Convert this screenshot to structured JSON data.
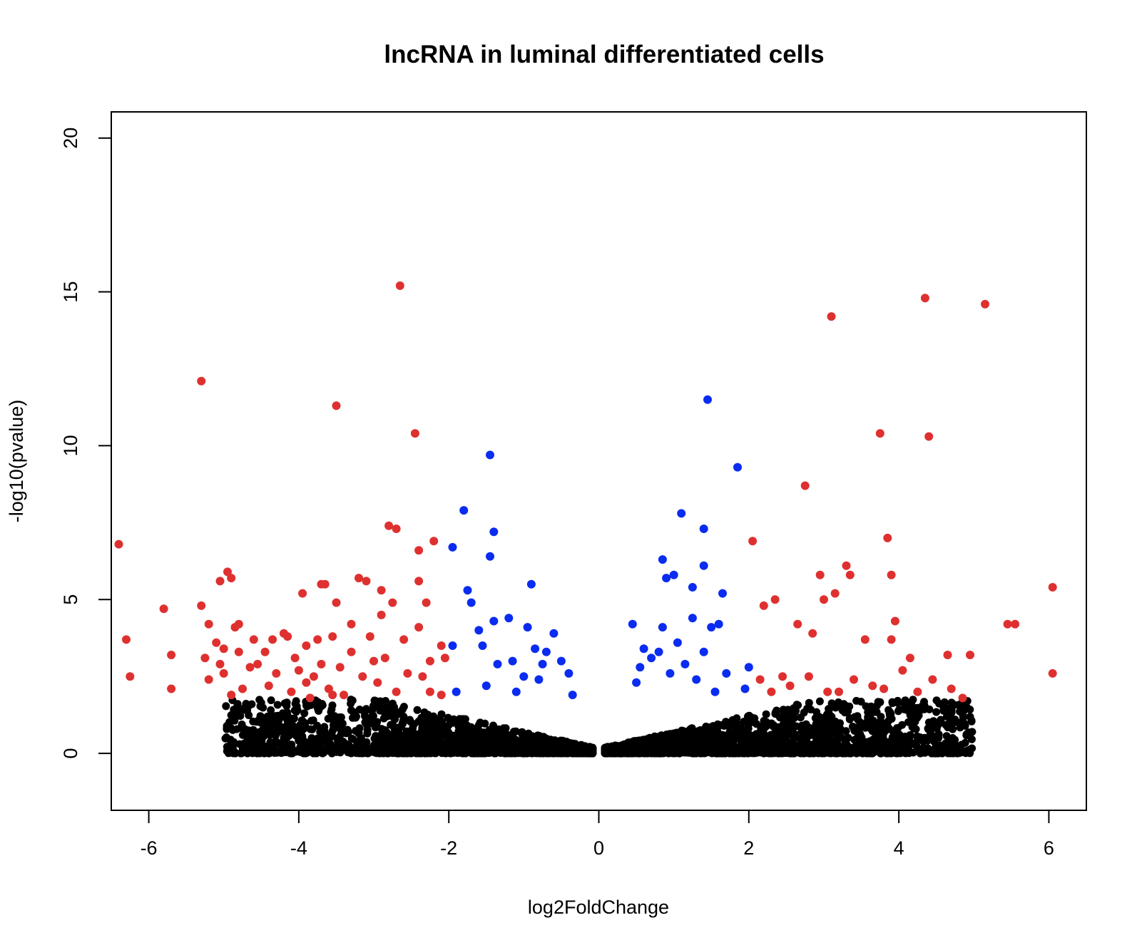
{
  "chart_data": {
    "type": "scatter",
    "title": "lncRNA in luminal differentiated cells",
    "xlabel": "log2FoldChange",
    "ylabel": "-log10(pvalue)",
    "xlim": [
      -6.5,
      6.5
    ],
    "ylim": [
      -1.85,
      20.85
    ],
    "xticks": [
      "-6",
      "-4",
      "-2",
      "0",
      "2",
      "4",
      "6"
    ],
    "yticks": [
      "0",
      "5",
      "10",
      "15",
      "20"
    ],
    "grid": false,
    "colors": {
      "significant_large_fc": "#df3030",
      "significant_small_fc": "#0a2cf0",
      "not_significant": "#000000"
    },
    "series": [
      {
        "color": "#df3030",
        "points": [
          [
            -6.4,
            6.8
          ],
          [
            -6.3,
            3.7
          ],
          [
            -6.25,
            2.5
          ],
          [
            -5.8,
            4.7
          ],
          [
            -5.7,
            3.2
          ],
          [
            -5.7,
            2.1
          ],
          [
            -5.3,
            12.1
          ],
          [
            -5.3,
            4.8
          ],
          [
            -5.25,
            3.1
          ],
          [
            -5.2,
            4.2
          ],
          [
            -5.2,
            2.4
          ],
          [
            -5.1,
            3.6
          ],
          [
            -5.05,
            5.6
          ],
          [
            -5.05,
            2.9
          ],
          [
            -5.0,
            3.4
          ],
          [
            -5.0,
            2.6
          ],
          [
            -4.95,
            5.9
          ],
          [
            -4.9,
            5.7
          ],
          [
            -4.9,
            1.9
          ],
          [
            -4.85,
            4.1
          ],
          [
            -4.8,
            4.2
          ],
          [
            -4.8,
            3.3
          ],
          [
            -4.75,
            2.1
          ],
          [
            -4.65,
            2.8
          ],
          [
            -4.6,
            3.7
          ],
          [
            -4.55,
            2.9
          ],
          [
            -4.45,
            3.3
          ],
          [
            -4.4,
            2.2
          ],
          [
            -4.35,
            3.7
          ],
          [
            -4.3,
            2.6
          ],
          [
            -4.2,
            3.9
          ],
          [
            -4.15,
            3.8
          ],
          [
            -4.1,
            2.0
          ],
          [
            -4.05,
            3.1
          ],
          [
            -4.0,
            2.7
          ],
          [
            -3.95,
            5.2
          ],
          [
            -3.9,
            3.5
          ],
          [
            -3.9,
            2.3
          ],
          [
            -3.85,
            1.8
          ],
          [
            -3.8,
            2.5
          ],
          [
            -3.75,
            3.7
          ],
          [
            -3.7,
            5.5
          ],
          [
            -3.7,
            2.9
          ],
          [
            -3.65,
            5.5
          ],
          [
            -3.6,
            2.1
          ],
          [
            -3.55,
            3.8
          ],
          [
            -3.55,
            1.9
          ],
          [
            -3.5,
            11.3
          ],
          [
            -3.5,
            4.9
          ],
          [
            -3.45,
            2.8
          ],
          [
            -3.4,
            1.9
          ],
          [
            -3.3,
            4.2
          ],
          [
            -3.3,
            3.3
          ],
          [
            -3.2,
            5.7
          ],
          [
            -3.15,
            2.5
          ],
          [
            -3.1,
            5.6
          ],
          [
            -3.05,
            3.8
          ],
          [
            -3.0,
            3.0
          ],
          [
            -2.95,
            2.3
          ],
          [
            -2.9,
            5.3
          ],
          [
            -2.9,
            4.5
          ],
          [
            -2.85,
            3.1
          ],
          [
            -2.8,
            7.4
          ],
          [
            -2.75,
            4.9
          ],
          [
            -2.7,
            7.3
          ],
          [
            -2.7,
            2.0
          ],
          [
            -2.65,
            15.2
          ],
          [
            -2.6,
            3.7
          ],
          [
            -2.55,
            2.6
          ],
          [
            -2.45,
            10.4
          ],
          [
            -2.4,
            6.6
          ],
          [
            -2.4,
            5.6
          ],
          [
            -2.4,
            4.1
          ],
          [
            -2.35,
            2.5
          ],
          [
            -2.3,
            4.9
          ],
          [
            -2.25,
            3.0
          ],
          [
            -2.25,
            2.0
          ],
          [
            -2.2,
            6.9
          ],
          [
            -2.1,
            3.5
          ],
          [
            -2.05,
            3.1
          ],
          [
            -2.1,
            1.9
          ]
        ]
      },
      {
        "color": "#0a2cf0",
        "points": [
          [
            -1.95,
            6.7
          ],
          [
            -1.95,
            3.5
          ],
          [
            -1.9,
            2.0
          ],
          [
            -1.8,
            7.9
          ],
          [
            -1.75,
            5.3
          ],
          [
            -1.7,
            4.9
          ],
          [
            -1.6,
            4.0
          ],
          [
            -1.55,
            3.5
          ],
          [
            -1.5,
            2.2
          ],
          [
            -1.45,
            9.7
          ],
          [
            -1.45,
            6.4
          ],
          [
            -1.4,
            7.2
          ],
          [
            -1.4,
            4.3
          ],
          [
            -1.35,
            2.9
          ],
          [
            -1.2,
            4.4
          ],
          [
            -1.15,
            3.0
          ],
          [
            -1.1,
            2.0
          ],
          [
            -1.0,
            2.5
          ],
          [
            -0.95,
            4.1
          ],
          [
            -0.9,
            5.5
          ],
          [
            -0.85,
            3.4
          ],
          [
            -0.8,
            2.4
          ],
          [
            -0.75,
            2.9
          ],
          [
            -0.7,
            3.3
          ],
          [
            -0.6,
            3.9
          ],
          [
            -0.5,
            3.0
          ],
          [
            -0.4,
            2.6
          ],
          [
            -0.35,
            1.9
          ],
          [
            0.45,
            4.2
          ],
          [
            0.5,
            2.3
          ],
          [
            0.55,
            2.8
          ],
          [
            0.6,
            3.4
          ],
          [
            0.7,
            3.1
          ],
          [
            0.8,
            3.3
          ],
          [
            0.85,
            6.3
          ],
          [
            0.85,
            4.1
          ],
          [
            0.9,
            5.7
          ],
          [
            0.95,
            2.6
          ],
          [
            1.0,
            5.8
          ],
          [
            1.05,
            3.6
          ],
          [
            1.1,
            7.8
          ],
          [
            1.15,
            2.9
          ],
          [
            1.25,
            5.4
          ],
          [
            1.25,
            4.4
          ],
          [
            1.3,
            2.4
          ],
          [
            1.4,
            7.3
          ],
          [
            1.4,
            6.1
          ],
          [
            1.4,
            3.3
          ],
          [
            1.45,
            11.5
          ],
          [
            1.5,
            4.1
          ],
          [
            1.55,
            2.0
          ],
          [
            1.6,
            4.2
          ],
          [
            1.65,
            5.2
          ],
          [
            1.7,
            2.6
          ],
          [
            1.85,
            9.3
          ],
          [
            1.95,
            2.1
          ],
          [
            2.0,
            2.8
          ]
        ]
      },
      {
        "color": "#df3030",
        "points": [
          [
            2.05,
            6.9
          ],
          [
            2.15,
            2.4
          ],
          [
            2.2,
            4.8
          ],
          [
            2.3,
            2.0
          ],
          [
            2.35,
            5.0
          ],
          [
            2.45,
            2.5
          ],
          [
            2.55,
            2.2
          ],
          [
            2.65,
            4.2
          ],
          [
            2.75,
            8.7
          ],
          [
            2.8,
            2.5
          ],
          [
            2.85,
            3.9
          ],
          [
            2.95,
            5.8
          ],
          [
            3.0,
            5.0
          ],
          [
            3.05,
            2.0
          ],
          [
            3.1,
            14.2
          ],
          [
            3.15,
            5.2
          ],
          [
            3.2,
            2.0
          ],
          [
            3.3,
            6.1
          ],
          [
            3.35,
            5.8
          ],
          [
            3.4,
            2.4
          ],
          [
            3.55,
            3.7
          ],
          [
            3.65,
            2.2
          ],
          [
            3.75,
            10.4
          ],
          [
            3.8,
            2.1
          ],
          [
            3.85,
            7.0
          ],
          [
            3.9,
            5.8
          ],
          [
            3.9,
            3.7
          ],
          [
            3.95,
            4.3
          ],
          [
            4.05,
            2.7
          ],
          [
            4.15,
            3.1
          ],
          [
            4.25,
            2.0
          ],
          [
            4.35,
            14.8
          ],
          [
            4.4,
            10.3
          ],
          [
            4.45,
            2.4
          ],
          [
            4.65,
            3.2
          ],
          [
            4.7,
            2.1
          ],
          [
            4.85,
            1.8
          ],
          [
            4.95,
            3.2
          ],
          [
            5.15,
            14.6
          ],
          [
            5.45,
            4.2
          ],
          [
            5.55,
            4.2
          ],
          [
            6.05,
            5.4
          ],
          [
            6.05,
            2.6
          ]
        ]
      }
    ]
  }
}
